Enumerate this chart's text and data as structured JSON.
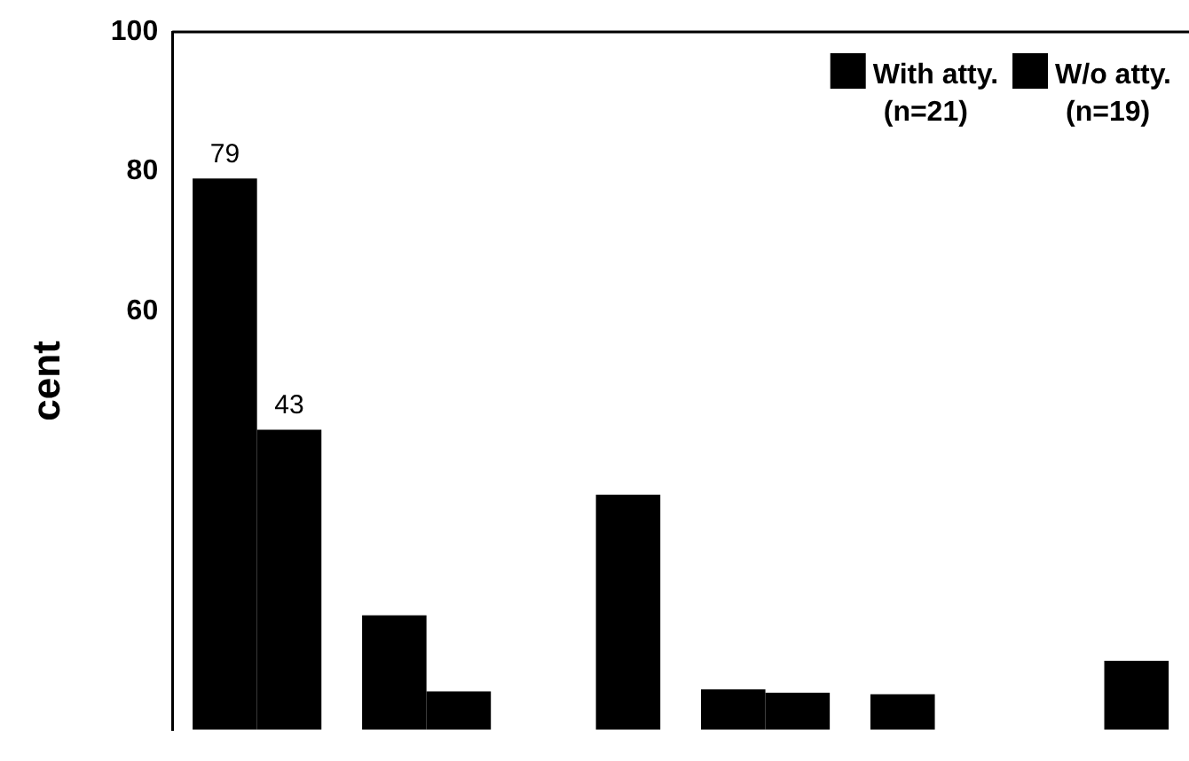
{
  "chart_data": {
    "type": "bar",
    "ylabel": "cent",
    "categories": [
      null,
      null,
      null,
      null,
      null,
      null
    ],
    "series": [
      {
        "name": "With atty. (n=21)",
        "color": "#000000",
        "values": [
          79,
          16.4,
          null,
          5.8,
          5.1,
          null
        ],
        "value_labels": [
          "79",
          null,
          null,
          null,
          null,
          null
        ]
      },
      {
        "name": "W/o atty. (n=19)",
        "color": "#000000",
        "values": [
          43,
          5.5,
          33.7,
          5.3,
          null,
          9.9
        ],
        "value_labels": [
          "43",
          null,
          null,
          null,
          null,
          null
        ]
      }
    ],
    "ylim": [
      0,
      100
    ],
    "yticks": [
      60,
      80,
      100
    ],
    "grid": false,
    "legend": "top right",
    "tick_labels": "y"
  }
}
